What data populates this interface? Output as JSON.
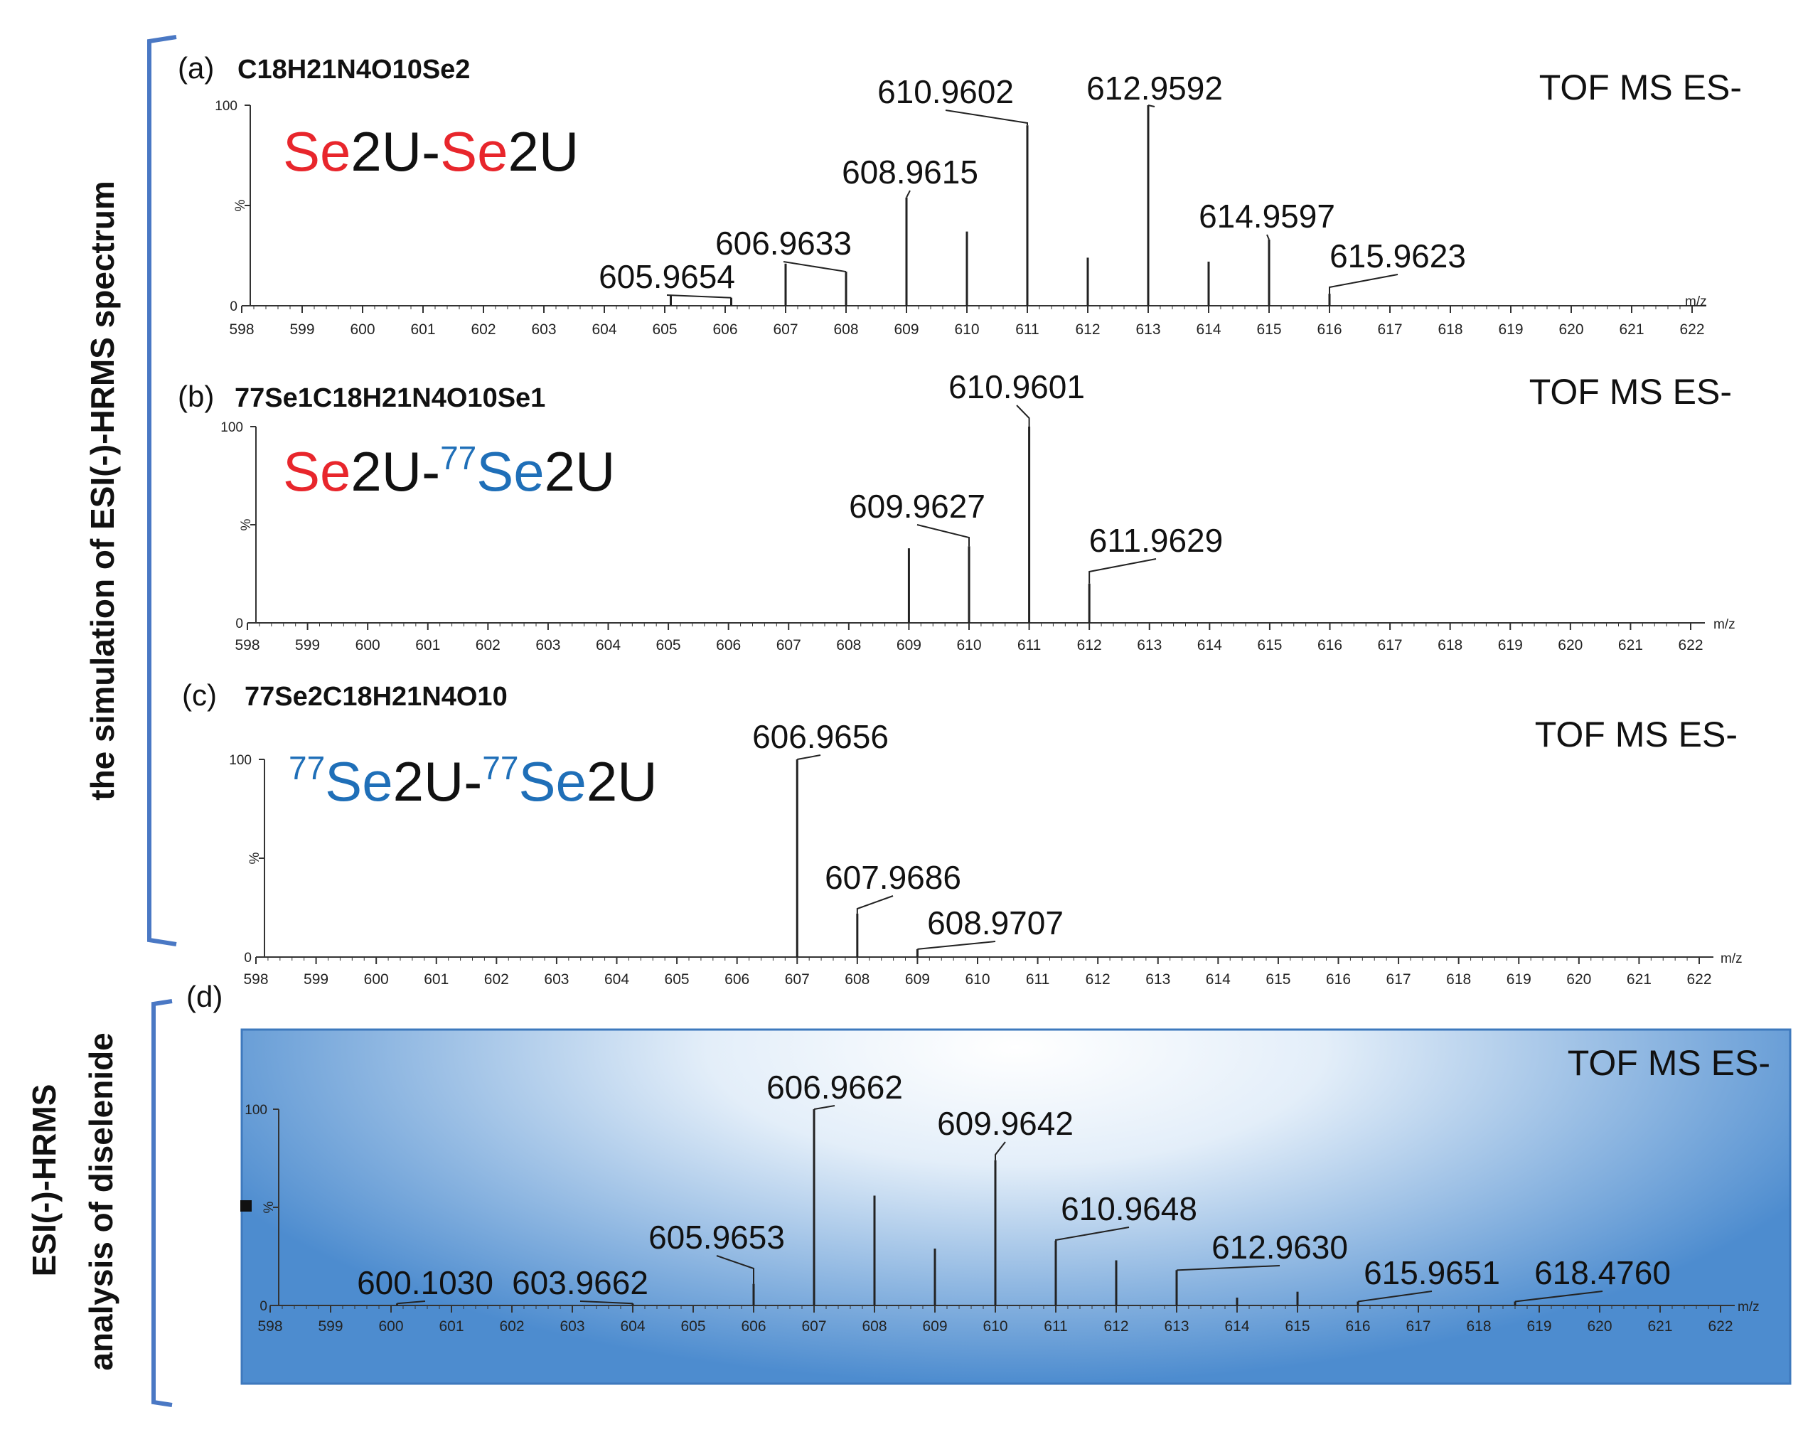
{
  "side_labels": {
    "simulation": "the simulation of ESI(-)-HRMS spectrum",
    "experimental_line1": "ESI(-)-HRMS",
    "experimental_line2": "analysis of diselenide"
  },
  "colors": {
    "se_red": "#e8262c",
    "se77_blue": "#1f6fb8",
    "bracket": "#4a78c4",
    "panel_d_dark": "#4d8ccf",
    "panel_d_light": "#ffffff"
  },
  "chart_data": [
    {
      "type": "bar",
      "panel": "(a)",
      "formula": "C18H21N4O10Se2",
      "mode": "TOF MS ES-",
      "compound": [
        {
          "text": "Se",
          "color": "red"
        },
        {
          "text": "2U-",
          "color": "black"
        },
        {
          "text": "Se",
          "color": "red"
        },
        {
          "text": "2U",
          "color": "black"
        }
      ],
      "xlabel": "m/z",
      "ylabel": "%",
      "xlim": [
        598,
        622
      ],
      "ylim": [
        0,
        100
      ],
      "yticks": [
        0,
        100
      ],
      "peaks": [
        {
          "x": 605.1,
          "y": 5
        },
        {
          "x": 606.1,
          "y": 4,
          "label": "605.9654"
        },
        {
          "x": 607.0,
          "y": 21
        },
        {
          "x": 608.0,
          "y": 17,
          "label": "606.9633"
        },
        {
          "x": 609.0,
          "y": 54,
          "label": "608.9615"
        },
        {
          "x": 610.0,
          "y": 37
        },
        {
          "x": 611.0,
          "y": 90,
          "label": "610.9602"
        },
        {
          "x": 612.0,
          "y": 24
        },
        {
          "x": 613.0,
          "y": 100,
          "label": "612.9592"
        },
        {
          "x": 614.0,
          "y": 22
        },
        {
          "x": 615.0,
          "y": 33,
          "label": "614.9597"
        },
        {
          "x": 616.0,
          "y": 6,
          "label": "615.9623"
        }
      ]
    },
    {
      "type": "bar",
      "panel": "(b)",
      "formula": "77Se1C18H21N4O10Se1",
      "mode": "TOF MS ES-",
      "compound": [
        {
          "text": "Se",
          "color": "red"
        },
        {
          "text": "2U-",
          "color": "black"
        },
        {
          "text": "77",
          "color": "blue",
          "sup": true
        },
        {
          "text": "Se",
          "color": "blue"
        },
        {
          "text": "2U",
          "color": "black"
        }
      ],
      "xlabel": "m/z",
      "ylabel": "%",
      "xlim": [
        598,
        622
      ],
      "ylim": [
        0,
        100
      ],
      "yticks": [
        0,
        100
      ],
      "peaks": [
        {
          "x": 609.0,
          "y": 38
        },
        {
          "x": 610.0,
          "y": 39,
          "label": "609.9627"
        },
        {
          "x": 611.0,
          "y": 100,
          "label": "610.9601"
        },
        {
          "x": 612.0,
          "y": 20,
          "label": "611.9629"
        }
      ]
    },
    {
      "type": "bar",
      "panel": "(c)",
      "formula": "77Se2C18H21N4O10",
      "mode": "TOF MS ES-",
      "compound": [
        {
          "text": "77",
          "color": "blue",
          "sup": true
        },
        {
          "text": "Se",
          "color": "blue"
        },
        {
          "text": "2U-",
          "color": "black"
        },
        {
          "text": "77",
          "color": "blue",
          "sup": true
        },
        {
          "text": "Se",
          "color": "blue"
        },
        {
          "text": "2U",
          "color": "black"
        }
      ],
      "xlabel": "m/z",
      "ylabel": "%",
      "xlim": [
        598,
        622
      ],
      "ylim": [
        0,
        100
      ],
      "yticks": [
        0,
        100
      ],
      "peaks": [
        {
          "x": 607.0,
          "y": 100,
          "label": "606.9656"
        },
        {
          "x": 608.0,
          "y": 22,
          "label": "607.9686"
        },
        {
          "x": 609.0,
          "y": 4,
          "label": "608.9707"
        }
      ]
    },
    {
      "type": "bar",
      "panel": "(d)",
      "formula": "",
      "mode": "TOF MS ES-",
      "compound": [],
      "xlabel": "m/z",
      "ylabel": "%",
      "xlim": [
        598,
        622
      ],
      "ylim": [
        0,
        100
      ],
      "yticks": [
        0,
        100
      ],
      "peaks": [
        {
          "x": 600.1,
          "y": 1,
          "label": "600.1030"
        },
        {
          "x": 604.0,
          "y": 1,
          "label": "603.9662"
        },
        {
          "x": 606.0,
          "y": 11,
          "label": "605.9653"
        },
        {
          "x": 607.0,
          "y": 100,
          "label": "606.9662"
        },
        {
          "x": 608.0,
          "y": 56
        },
        {
          "x": 609.0,
          "y": 29
        },
        {
          "x": 610.0,
          "y": 74,
          "label": "609.9642"
        },
        {
          "x": 611.0,
          "y": 33,
          "label": "610.9648"
        },
        {
          "x": 612.0,
          "y": 23
        },
        {
          "x": 613.0,
          "y": 18,
          "label": "612.9630"
        },
        {
          "x": 614.0,
          "y": 4
        },
        {
          "x": 615.0,
          "y": 7
        },
        {
          "x": 616.0,
          "y": 2,
          "label": "615.9651"
        },
        {
          "x": 618.6,
          "y": 2,
          "label": "618.4760"
        }
      ]
    }
  ]
}
